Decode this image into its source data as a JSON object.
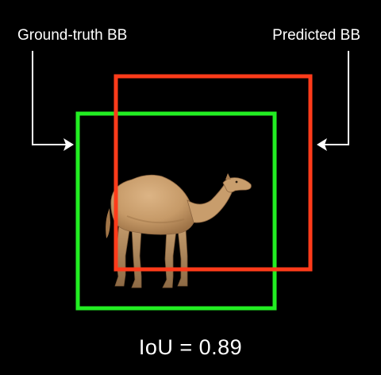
{
  "labels": {
    "ground_truth": "Ground-truth BB",
    "predicted": "Predicted BB"
  },
  "metric": {
    "text": "IoU = 0.89"
  },
  "colors": {
    "background": "#000000",
    "ground_truth_box": "#22ee22",
    "predicted_box": "#ff3b1a",
    "text": "#ffffff"
  },
  "subject": {
    "icon": "camel-image"
  }
}
